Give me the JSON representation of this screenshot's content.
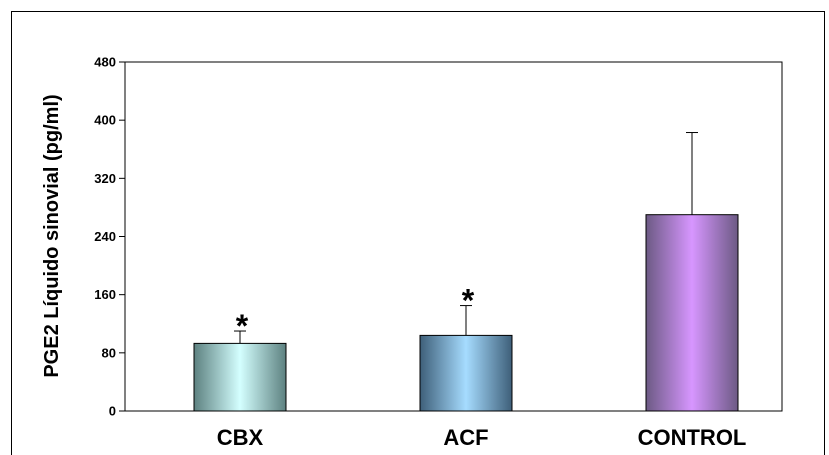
{
  "chart_data": {
    "type": "bar",
    "title": "",
    "xlabel": "",
    "ylabel": "PGE2 Líquido sinovial  (pg/ml)",
    "ylim": [
      0,
      480
    ],
    "yticks": [
      0,
      80,
      160,
      240,
      320,
      400,
      480
    ],
    "categories": [
      "CBX",
      "ACF",
      "CONTROL"
    ],
    "values": [
      93,
      104,
      270
    ],
    "errors": [
      17,
      41,
      113
    ],
    "annotations": [
      "*",
      "*",
      ""
    ],
    "grid": false,
    "legend": "none",
    "colors": {
      "CBX": [
        "#5d8180",
        "#d4ffff",
        "#5d8180"
      ],
      "ACF": [
        "#3e5f79",
        "#a6dcff",
        "#3e5f79"
      ],
      "CONTROL": [
        "#6c5a84",
        "#d796ff",
        "#6c5a84"
      ]
    }
  }
}
